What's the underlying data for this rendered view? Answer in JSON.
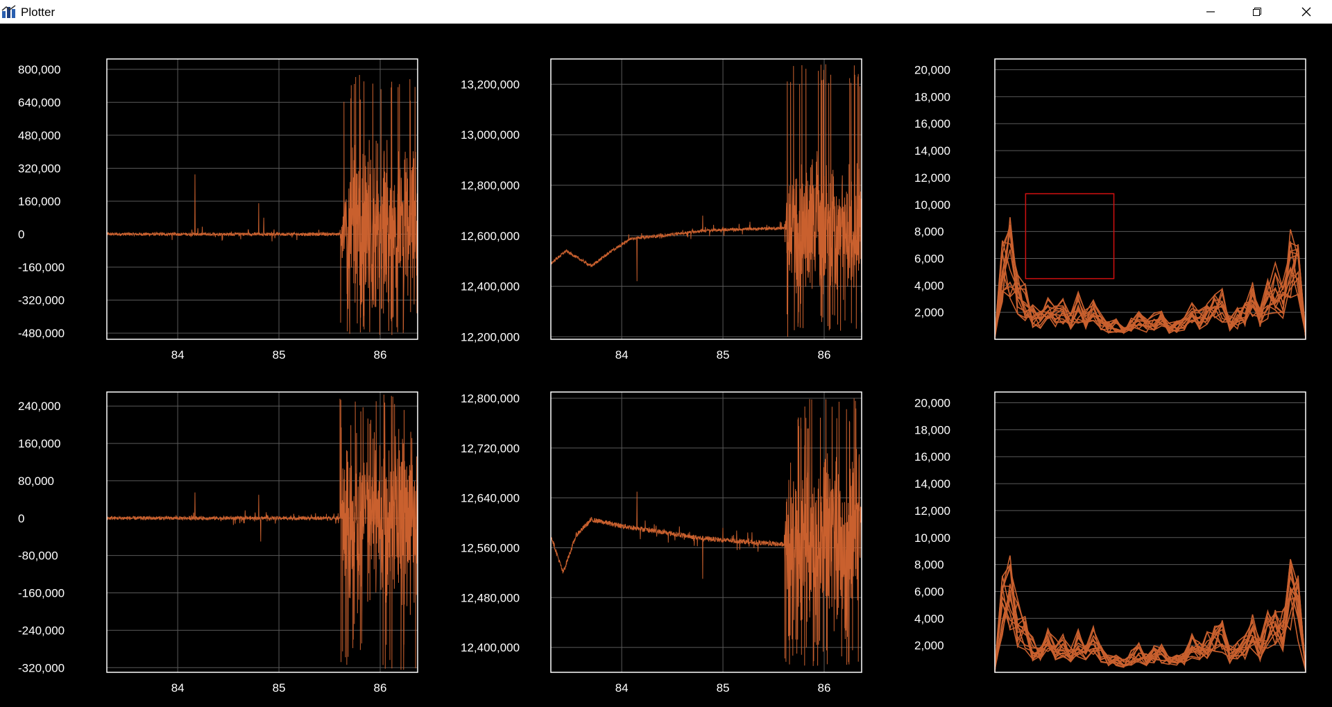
{
  "window": {
    "title": "Plotter",
    "icons": [
      "app-icon",
      "minimize-icon",
      "restore-icon",
      "close-icon"
    ]
  },
  "style": {
    "line_color": "#c9602e",
    "grid_color": "#5a5a5a",
    "frame_color": "#ffffff",
    "selection_color": "#d01010",
    "background": "#000000"
  },
  "chart_data": [
    {
      "type": "line",
      "xticks": [
        "84",
        "85",
        "86"
      ],
      "xlim": [
        83.3,
        86.37
      ],
      "ylim": [
        -510000,
        850000
      ],
      "yticks": [
        800000,
        640000,
        480000,
        320000,
        160000,
        0,
        -160000,
        -320000,
        -480000
      ],
      "ytick_labels": [
        "800,000",
        "640,000",
        "480,000",
        "320,000",
        "160,000",
        "0",
        "-160,000",
        "-320,000",
        "-480,000"
      ],
      "series": [
        {
          "baseline": 0,
          "noise": 8000,
          "spikes": [
            [
              84.17,
              290000,
              -170000
            ],
            [
              84.8,
              150000,
              -40000
            ],
            [
              84.85,
              80000,
              -60000
            ]
          ],
          "burst": {
            "start": 85.6,
            "end": 86.37,
            "amp": 400000,
            "max": 780000,
            "min": -490000
          }
        }
      ]
    },
    {
      "type": "line",
      "xticks": [
        "84",
        "85",
        "86"
      ],
      "xlim": [
        83.3,
        86.37
      ],
      "ylim": [
        12190000,
        13300000
      ],
      "yticks": [
        13200000,
        13000000,
        12800000,
        12600000,
        12400000,
        12200000
      ],
      "ytick_labels": [
        "13,200,000",
        "13,000,000",
        "12,800,000",
        "12,600,000",
        "12,400,000",
        "12,200,000"
      ],
      "series": [
        {
          "trend": [
            [
              83.3,
              12490000
            ],
            [
              83.45,
              12540000
            ],
            [
              83.7,
              12480000
            ],
            [
              83.9,
              12540000
            ],
            [
              84.1,
              12590000
            ],
            [
              84.4,
              12600000
            ],
            [
              84.8,
              12620000
            ],
            [
              85.1,
              12625000
            ],
            [
              85.6,
              12630000
            ]
          ],
          "noise": 6000,
          "spikes": [
            [
              84.15,
              12770000,
              12420000
            ],
            [
              84.8,
              12680000,
              12450000
            ]
          ],
          "burst": {
            "start": 85.6,
            "end": 86.37,
            "amp": 250000,
            "max": 13280000,
            "min": 12200000
          }
        }
      ]
    },
    {
      "type": "line",
      "xticks": [],
      "ylim": [
        0,
        20800
      ],
      "yticks": [
        20000,
        18000,
        16000,
        14000,
        12000,
        10000,
        8000,
        6000,
        4000,
        2000
      ],
      "ytick_labels": [
        "20,000",
        "18,000",
        "16,000",
        "14,000",
        "12,000",
        "10,000",
        "8,000",
        "6,000",
        "4,000",
        "2,000"
      ],
      "spectrum": {
        "profile": [
          5500,
          7500,
          8400,
          5200,
          3800,
          2400,
          1900,
          3100,
          2400,
          2900,
          1900,
          3200,
          2000,
          3500,
          1800,
          1200,
          1400,
          900,
          1500,
          2000,
          1400,
          1800,
          1900,
          1100,
          1300,
          1500,
          2600,
          2100,
          2800,
          3200,
          3600,
          1800,
          2200,
          2700,
          3900,
          2200,
          4200,
          5200,
          4300,
          8400,
          6600,
          3700
        ],
        "n_series": 14
      },
      "selection_box": {
        "x0": 0.099,
        "x1": 0.383,
        "y_top": 10800,
        "y_bottom": 4500
      }
    },
    {
      "type": "line",
      "xticks": [
        "84",
        "85",
        "86"
      ],
      "xlim": [
        83.3,
        86.37
      ],
      "ylim": [
        -330000,
        270000
      ],
      "yticks": [
        240000,
        160000,
        80000,
        0,
        -80000,
        -160000,
        -240000,
        -320000
      ],
      "ytick_labels": [
        "240,000",
        "160,000",
        "80,000",
        "0",
        "-80,000",
        "-160,000",
        "-240,000",
        "-320,000"
      ],
      "series": [
        {
          "baseline": 0,
          "noise": 4000,
          "spikes": [
            [
              84.17,
              55000,
              -75000
            ],
            [
              84.8,
              50000,
              -100000
            ],
            [
              84.82,
              35000,
              -50000
            ]
          ],
          "burst": {
            "start": 85.6,
            "end": 86.37,
            "amp": 180000,
            "max": 265000,
            "min": -325000
          }
        }
      ]
    },
    {
      "type": "line",
      "xticks": [
        "84",
        "85",
        "86"
      ],
      "xlim": [
        83.3,
        86.37
      ],
      "ylim": [
        12360000,
        12810000
      ],
      "yticks": [
        12800000,
        12720000,
        12640000,
        12560000,
        12480000,
        12400000
      ],
      "ytick_labels": [
        "12,800,000",
        "12,720,000",
        "12,640,000",
        "12,560,000",
        "12,480,000",
        "12,400,000"
      ],
      "series": [
        {
          "trend": [
            [
              83.3,
              12580000
            ],
            [
              83.42,
              12520000
            ],
            [
              83.55,
              12580000
            ],
            [
              83.7,
              12605000
            ],
            [
              84.0,
              12595000
            ],
            [
              84.4,
              12585000
            ],
            [
              84.8,
              12575000
            ],
            [
              85.2,
              12570000
            ],
            [
              85.6,
              12565000
            ]
          ],
          "noise": 4000,
          "spikes": [
            [
              84.15,
              12650000,
              12530000
            ],
            [
              84.8,
              12620000,
              12510000
            ]
          ],
          "burst": {
            "start": 85.6,
            "end": 86.37,
            "amp": 130000,
            "max": 12800000,
            "min": 12370000
          }
        }
      ]
    },
    {
      "type": "line",
      "xticks": [],
      "ylim": [
        0,
        20800
      ],
      "yticks": [
        20000,
        18000,
        16000,
        14000,
        12000,
        10000,
        8000,
        6000,
        4000,
        2000
      ],
      "ytick_labels": [
        "20,000",
        "18,000",
        "16,000",
        "14,000",
        "12,000",
        "10,000",
        "8,000",
        "6,000",
        "4,000",
        "2,000"
      ],
      "spectrum": {
        "profile": [
          5500,
          7500,
          8400,
          5200,
          3800,
          2400,
          1900,
          3100,
          2400,
          2900,
          1900,
          3200,
          2000,
          3500,
          1800,
          1200,
          1400,
          900,
          1500,
          2000,
          1400,
          1800,
          1900,
          1100,
          1300,
          1500,
          2600,
          2100,
          2800,
          3200,
          3600,
          1800,
          2200,
          2700,
          3900,
          2200,
          4200,
          5200,
          4300,
          8400,
          6600,
          3700
        ],
        "n_series": 14
      }
    }
  ]
}
